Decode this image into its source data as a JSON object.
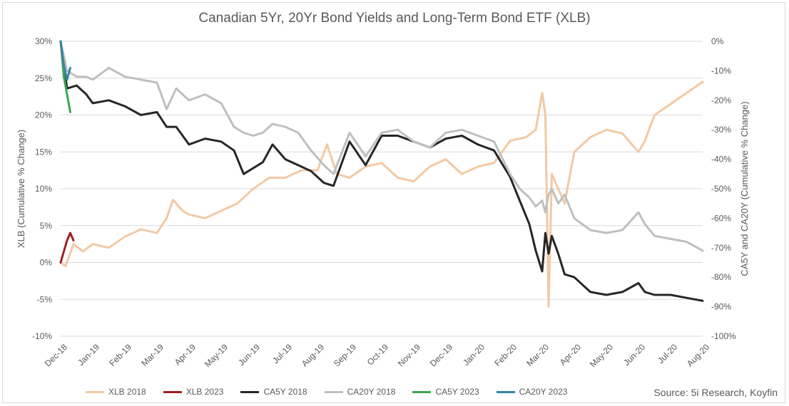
{
  "title": "Canadian 5Yr, 20Yr Bond Yields and Long-Term Bond ETF (XLB)",
  "source": "Source: 5i Research, Koyfin",
  "chart_data": {
    "type": "line",
    "title": "Canadian 5Yr, 20Yr Bond Yields and Long-Term Bond ETF (XLB)",
    "ylabel_left": "XLB (Cumulative % Change)",
    "ylabel_right": "CA5Y and CA20Y (Cumulative % Change)",
    "ylim_left": [
      -10,
      30
    ],
    "ylim_right": [
      -100,
      0
    ],
    "left_ticks": [
      "30%",
      "25%",
      "20%",
      "15%",
      "10%",
      "5%",
      "0%",
      "-5%",
      "-10%"
    ],
    "right_ticks": [
      "0%",
      "-10%",
      "-20%",
      "-30%",
      "-40%",
      "-50%",
      "-60%",
      "-70%",
      "-80%",
      "-90%",
      "-100%"
    ],
    "x_labels": [
      "Dec-18",
      "Jan-19",
      "Feb-19",
      "Mar-19",
      "Apr-19",
      "May-19",
      "Jun-19",
      "Jul-19",
      "Aug-19",
      "Sep-19",
      "Oct-19",
      "Nov-19",
      "Dec-19",
      "Jan-20",
      "Feb-20",
      "Mar-20",
      "Apr-20",
      "May-20",
      "Jun-20",
      "Jul-20",
      "Aug-20"
    ],
    "grid": true,
    "legend_position": "bottom",
    "series": [
      {
        "name": "XLB 2018",
        "axis": "left",
        "color": "#f2c9a4",
        "x": [
          0,
          0.15,
          0.4,
          0.7,
          1,
          1.5,
          2,
          2.5,
          3,
          3.3,
          3.5,
          3.8,
          4,
          4.5,
          5,
          5.5,
          6,
          6.5,
          7,
          7.5,
          8,
          8.3,
          8.6,
          9,
          9.5,
          10,
          10.5,
          11,
          11.5,
          12,
          12.5,
          13,
          13.5,
          14,
          14.5,
          14.8,
          15,
          15.1,
          15.2,
          15.3,
          15.5,
          15.7,
          16,
          16.5,
          17,
          17.5,
          18,
          18.2,
          18.5,
          19,
          19.5,
          20
        ],
        "y": [
          0,
          -0.5,
          2.5,
          1.5,
          2.5,
          2,
          3.5,
          4.5,
          4,
          6,
          8.5,
          7,
          6.5,
          6,
          7,
          8,
          10,
          11.5,
          11.5,
          12.5,
          12.5,
          16,
          12,
          11.5,
          13,
          13.5,
          11.5,
          11,
          13,
          14,
          12,
          13,
          13.5,
          16.5,
          17,
          18,
          23,
          20,
          -6,
          12,
          10,
          8,
          15,
          17,
          18,
          17.5,
          15,
          16.5,
          20,
          21.5,
          23,
          24.5
        ]
      },
      {
        "name": "XLB 2023",
        "axis": "left",
        "color": "#9e2021",
        "x": [
          0,
          0.1,
          0.2,
          0.3,
          0.4
        ],
        "y": [
          0,
          1.5,
          3,
          4,
          3
        ]
      },
      {
        "name": "CA5Y 2018",
        "axis": "right",
        "color": "#262626",
        "x": [
          0,
          0.2,
          0.5,
          0.8,
          1,
          1.5,
          2,
          2.5,
          3,
          3.3,
          3.6,
          4,
          4.5,
          5,
          5.4,
          5.7,
          6,
          6.3,
          6.6,
          7,
          7.4,
          7.8,
          8.2,
          8.5,
          9,
          9.5,
          10,
          10.5,
          11,
          11.5,
          12,
          12.5,
          13,
          13.5,
          14,
          14.3,
          14.6,
          14.8,
          15,
          15.1,
          15.2,
          15.3,
          15.5,
          15.7,
          16,
          16.5,
          17,
          17.5,
          18,
          18.2,
          18.5,
          19,
          19.5,
          20
        ],
        "y": [
          0,
          -16,
          -15,
          -18,
          -21,
          -20,
          -22,
          -25,
          -24,
          -29,
          -29,
          -35,
          -33,
          -34,
          -37,
          -45,
          -43,
          -41,
          -35,
          -40,
          -42,
          -44,
          -48,
          -49,
          -34,
          -42,
          -32,
          -32,
          -34,
          -36,
          -33,
          -32,
          -35,
          -37,
          -46,
          -54,
          -62,
          -71,
          -78,
          -65,
          -72,
          -66,
          -72,
          -79,
          -80,
          -85,
          -86,
          -85,
          -82,
          -85,
          -86,
          -86,
          -87,
          -88
        ]
      },
      {
        "name": "CA20Y 2018",
        "axis": "right",
        "color": "#bfbfbf",
        "x": [
          0,
          0.2,
          0.5,
          0.8,
          1,
          1.5,
          2,
          2.5,
          3,
          3.3,
          3.6,
          4,
          4.5,
          5,
          5.4,
          5.7,
          6,
          6.3,
          6.6,
          7,
          7.4,
          7.8,
          8.2,
          8.5,
          9,
          9.5,
          10,
          10.5,
          11,
          11.5,
          12,
          12.5,
          13,
          13.5,
          14,
          14.3,
          14.6,
          14.8,
          15,
          15.1,
          15.2,
          15.3,
          15.5,
          15.7,
          16,
          16.5,
          17,
          17.5,
          18,
          18.2,
          18.5,
          19,
          19.5,
          20
        ],
        "y": [
          0,
          -10,
          -12,
          -12,
          -13,
          -9,
          -12,
          -13,
          -14,
          -23,
          -16,
          -20,
          -18,
          -21,
          -29,
          -31,
          -32,
          -31,
          -28,
          -29,
          -31,
          -37,
          -42,
          -45,
          -31,
          -39,
          -31,
          -30,
          -34,
          -36,
          -31,
          -30,
          -32,
          -34,
          -45,
          -50,
          -53,
          -56,
          -54,
          -58,
          -52,
          -50,
          -55,
          -52,
          -60,
          -64,
          -65,
          -64,
          -58,
          -62,
          -66,
          -67,
          -68,
          -71
        ]
      },
      {
        "name": "CA5Y 2023",
        "axis": "right",
        "color": "#3aa654",
        "x": [
          0,
          0.1,
          0.2,
          0.3
        ],
        "y": [
          0,
          -12,
          -18,
          -24
        ]
      },
      {
        "name": "CA20Y 2023",
        "axis": "right",
        "color": "#3a83a6",
        "x": [
          0,
          0.1,
          0.2,
          0.3
        ],
        "y": [
          0,
          -8,
          -13,
          -9
        ]
      }
    ]
  }
}
